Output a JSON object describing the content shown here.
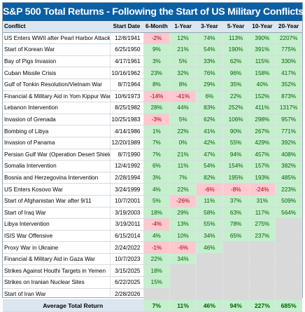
{
  "title": "S&P 500 Total Returns - Following the Start of US Military Conflicts",
  "columns": [
    "Conflict",
    "Start Date",
    "6-Month",
    "1-Year",
    "3-Year",
    "5-Year",
    "10-Year",
    "20-Year"
  ],
  "rows": [
    {
      "conflict": "US Enters WWII after Pearl Harbor Attack",
      "date": "12/8/1941",
      "values": [
        "-2%",
        "12%",
        "74%",
        "113%",
        "390%",
        "2207%"
      ]
    },
    {
      "conflict": "Start of Korean War",
      "date": "6/25/1950",
      "values": [
        "9%",
        "21%",
        "54%",
        "190%",
        "391%",
        "775%"
      ]
    },
    {
      "conflict": "Bay of Pigs Invasion",
      "date": "4/17/1961",
      "values": [
        "3%",
        "5%",
        "33%",
        "62%",
        "115%",
        "330%"
      ]
    },
    {
      "conflict": "Cuban Missile Crisis",
      "date": "10/16/1962",
      "values": [
        "23%",
        "32%",
        "76%",
        "96%",
        "158%",
        "417%"
      ]
    },
    {
      "conflict": "Gulf of Tonkin Resolution/Vietnam War",
      "date": "8/7/1964",
      "values": [
        "8%",
        "8%",
        "29%",
        "35%",
        "40%",
        "352%"
      ]
    },
    {
      "conflict": "Financial & Military Aid in Yom Kippur War",
      "date": "10/6/1973",
      "values": [
        "-14%",
        "-41%",
        "6%",
        "22%",
        "152%",
        "873%"
      ]
    },
    {
      "conflict": "Lebanon Intervention",
      "date": "8/25/1982",
      "values": [
        "28%",
        "44%",
        "83%",
        "252%",
        "411%",
        "1317%"
      ]
    },
    {
      "conflict": "Invasion of Grenada",
      "date": "10/25/1983",
      "values": [
        "-3%",
        "5%",
        "62%",
        "106%",
        "298%",
        "957%"
      ]
    },
    {
      "conflict": "Bombing of Libya",
      "date": "4/14/1986",
      "values": [
        "1%",
        "22%",
        "41%",
        "90%",
        "267%",
        "771%"
      ]
    },
    {
      "conflict": "Invasion of Panama",
      "date": "12/20/1989",
      "values": [
        "7%",
        "0%",
        "42%",
        "55%",
        "429%",
        "392%"
      ]
    },
    {
      "conflict": "Persian Gulf War (Operation Desert Shield)",
      "date": "8/7/1990",
      "values": [
        "7%",
        "21%",
        "47%",
        "94%",
        "457%",
        "408%"
      ]
    },
    {
      "conflict": "Somalia Intervention",
      "date": "12/4/1992",
      "values": [
        "6%",
        "11%",
        "54%",
        "154%",
        "157%",
        "382%"
      ]
    },
    {
      "conflict": "Bosnia and Herzegovina Intervention",
      "date": "2/28/1994",
      "values": [
        "3%",
        "7%",
        "82%",
        "195%",
        "193%",
        "485%"
      ]
    },
    {
      "conflict": "US Enters Kosovo War",
      "date": "3/24/1999",
      "values": [
        "4%",
        "22%",
        "-6%",
        "-8%",
        "-24%",
        "223%"
      ]
    },
    {
      "conflict": "Start of Afghanistan War after 9/11",
      "date": "10/7/2001",
      "values": [
        "5%",
        "-26%",
        "11%",
        "37%",
        "31%",
        "509%"
      ]
    },
    {
      "conflict": "Start of Iraq War",
      "date": "3/19/2003",
      "values": [
        "18%",
        "29%",
        "58%",
        "63%",
        "117%",
        "564%"
      ]
    },
    {
      "conflict": "Libya Intervention",
      "date": "3/19/2011",
      "values": [
        "-4%",
        "13%",
        "55%",
        "78%",
        "275%",
        ""
      ]
    },
    {
      "conflict": "ISIS War Offensive",
      "date": "6/15/2014",
      "values": [
        "4%",
        "10%",
        "34%",
        "65%",
        "237%",
        ""
      ]
    },
    {
      "conflict": "Proxy War in Ukraine",
      "date": "2/24/2022",
      "values": [
        "-1%",
        "-6%",
        "46%",
        "",
        "",
        ""
      ]
    },
    {
      "conflict": "Financial & Military Aid in Gaza War",
      "date": "10/7/2023",
      "values": [
        "22%",
        "34%",
        "",
        "",
        "",
        ""
      ]
    },
    {
      "conflict": "Strikes Against Houthi Targets in Yemen",
      "date": "3/15/2025",
      "values": [
        "18%",
        "",
        "",
        "",
        "",
        ""
      ]
    },
    {
      "conflict": "Strikes on Iranian Nuclear Sites",
      "date": "6/22/2025",
      "values": [
        "15%",
        "",
        "",
        "",
        "",
        ""
      ]
    },
    {
      "conflict": "Start of Iran War",
      "date": "2/28/2026",
      "values": [
        "",
        "",
        "",
        "",
        "",
        ""
      ]
    }
  ],
  "average": {
    "label": "Average Total Return",
    "values": [
      "7%",
      "11%",
      "46%",
      "94%",
      "227%",
      "685%"
    ]
  },
  "colors": {
    "title_bg": "#0b5fa3",
    "header_bg": "#dce6f1",
    "pos_bg": "#c6efce",
    "pos_text": "#006100",
    "neg_bg": "#ffc7ce",
    "neg_text": "#9c0006",
    "na_bg": "#d9d9d9"
  }
}
